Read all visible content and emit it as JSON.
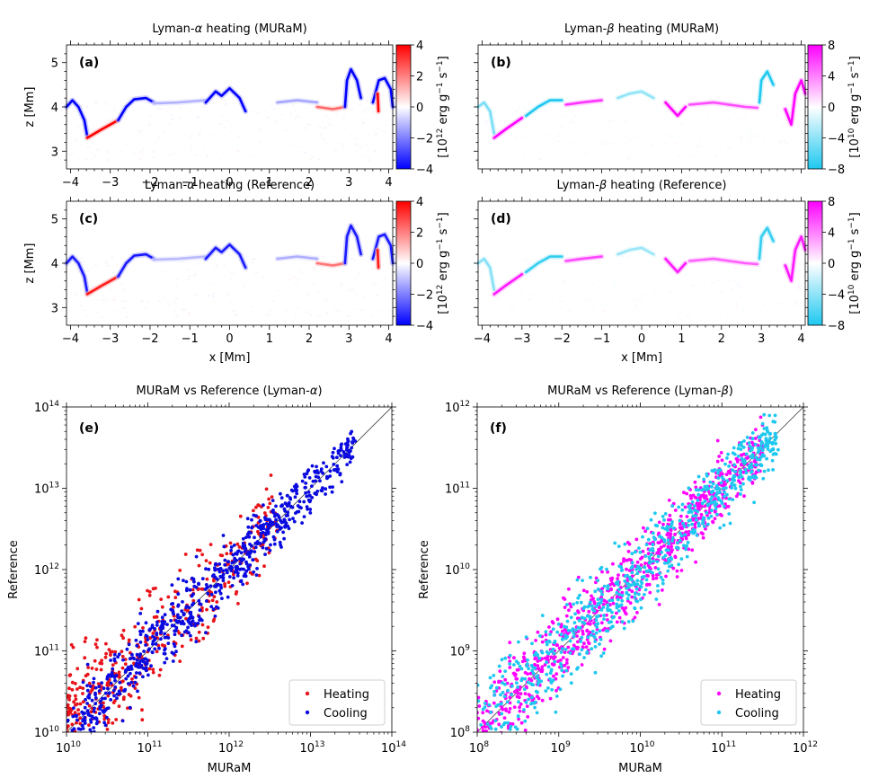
{
  "colors": {
    "heating_alpha": "#e8121a",
    "cooling_alpha": "#0a0ae0",
    "heating_beta": "#ff00ff",
    "cooling_beta": "#1ec8f0"
  },
  "chart_data": [
    {
      "type": "heatmap",
      "panel": "(a)",
      "title": "Lyman-α heating (MURaM)",
      "xlabel": "",
      "ylabel": "z [Mm]",
      "xlim": [
        -4.1,
        4.1
      ],
      "ylim": [
        2.6,
        5.4
      ],
      "xticks": [
        "−4",
        "−3",
        "−2",
        "−1",
        "0",
        "1",
        "2",
        "3",
        "4"
      ],
      "yticks": [
        "3",
        "4",
        "5"
      ],
      "colorbar": {
        "label": "[10^12 erg g^-1 s^-1]",
        "range": [
          -4,
          4
        ],
        "ticks": [
          "−4",
          "−2",
          "0",
          "2",
          "4"
        ],
        "colormap": "bwr"
      }
    },
    {
      "type": "heatmap",
      "panel": "(b)",
      "title": "Lyman-β heating (MURaM)",
      "xlabel": "",
      "ylabel": "",
      "xlim": [
        -4.1,
        4.1
      ],
      "ylim": [
        2.6,
        5.4
      ],
      "colorbar": {
        "label": "[10^10 erg g^-1 s^-1]",
        "range": [
          -8,
          8
        ],
        "ticks": [
          "−8",
          "−4",
          "0",
          "4",
          "8"
        ],
        "colormap": "cyan-white-magenta"
      }
    },
    {
      "type": "heatmap",
      "panel": "(c)",
      "title": "Lyman-α heating (Reference)",
      "xlabel": "x [Mm]",
      "ylabel": "z [Mm]",
      "xlim": [
        -4.1,
        4.1
      ],
      "ylim": [
        2.6,
        5.4
      ],
      "xticks": [
        "−4",
        "−3",
        "−2",
        "−1",
        "0",
        "1",
        "2",
        "3",
        "4"
      ],
      "yticks": [
        "3",
        "4",
        "5"
      ],
      "colorbar": {
        "label": "[10^12 erg g^-1 s^-1]",
        "range": [
          -4,
          4
        ],
        "ticks": [
          "−4",
          "−2",
          "0",
          "2",
          "4"
        ],
        "colormap": "bwr"
      }
    },
    {
      "type": "heatmap",
      "panel": "(d)",
      "title": "Lyman-β heating (Reference)",
      "xlabel": "x [Mm]",
      "ylabel": "",
      "xlim": [
        -4.1,
        4.1
      ],
      "ylim": [
        2.6,
        5.4
      ],
      "xticks": [
        "−4",
        "−3",
        "−2",
        "−1",
        "0",
        "1",
        "2",
        "3",
        "4"
      ],
      "colorbar": {
        "label": "[10^10 erg g^-1 s^-1]",
        "range": [
          -8,
          8
        ],
        "ticks": [
          "−8",
          "−4",
          "0",
          "4",
          "8"
        ],
        "colormap": "cyan-white-magenta"
      }
    },
    {
      "type": "scatter",
      "panel": "(e)",
      "title": "MURaM vs Reference (Lyman-α)",
      "xlabel": "MURaM",
      "ylabel": "Reference",
      "xscale": "log",
      "yscale": "log",
      "xlim_exp": [
        10,
        14
      ],
      "ylim_exp": [
        10,
        14
      ],
      "xticks_exp": [
        "10",
        "11",
        "12",
        "13",
        "14"
      ],
      "yticks_exp": [
        "10",
        "11",
        "12",
        "13",
        "14"
      ],
      "tick_base": "10",
      "reference_line": "y = x",
      "legend": {
        "location": "lower-right",
        "entries": [
          "Heating",
          "Cooling"
        ]
      },
      "series": [
        {
          "name": "Heating",
          "color": "#e8121a",
          "points": 420,
          "x_range_exp": [
            10.0,
            12.6
          ],
          "scatter_dex": 0.38
        },
        {
          "name": "Cooling",
          "color": "#0a0ae0",
          "points": 720,
          "x_range_exp": [
            10.0,
            13.55
          ],
          "scatter_dex": 0.22
        }
      ]
    },
    {
      "type": "scatter",
      "panel": "(f)",
      "title": "MURaM vs Reference (Lyman-β)",
      "xlabel": "MURaM",
      "ylabel": "Reference",
      "xscale": "log",
      "yscale": "log",
      "xlim_exp": [
        8,
        12
      ],
      "ylim_exp": [
        8,
        12
      ],
      "xticks_exp": [
        "8",
        "9",
        "10",
        "11",
        "12"
      ],
      "yticks_exp": [
        "8",
        "9",
        "10",
        "11",
        "12"
      ],
      "tick_base": "10",
      "reference_line": "y = x",
      "legend": {
        "location": "lower-right",
        "entries": [
          "Heating",
          "Cooling"
        ]
      },
      "series": [
        {
          "name": "Heating",
          "color": "#ff00ff",
          "points": 820,
          "x_range_exp": [
            8.0,
            11.5
          ],
          "scatter_dex": 0.28
        },
        {
          "name": "Cooling",
          "color": "#1ec8f0",
          "points": 720,
          "x_range_exp": [
            8.0,
            11.7
          ],
          "scatter_dex": 0.3
        }
      ]
    }
  ]
}
